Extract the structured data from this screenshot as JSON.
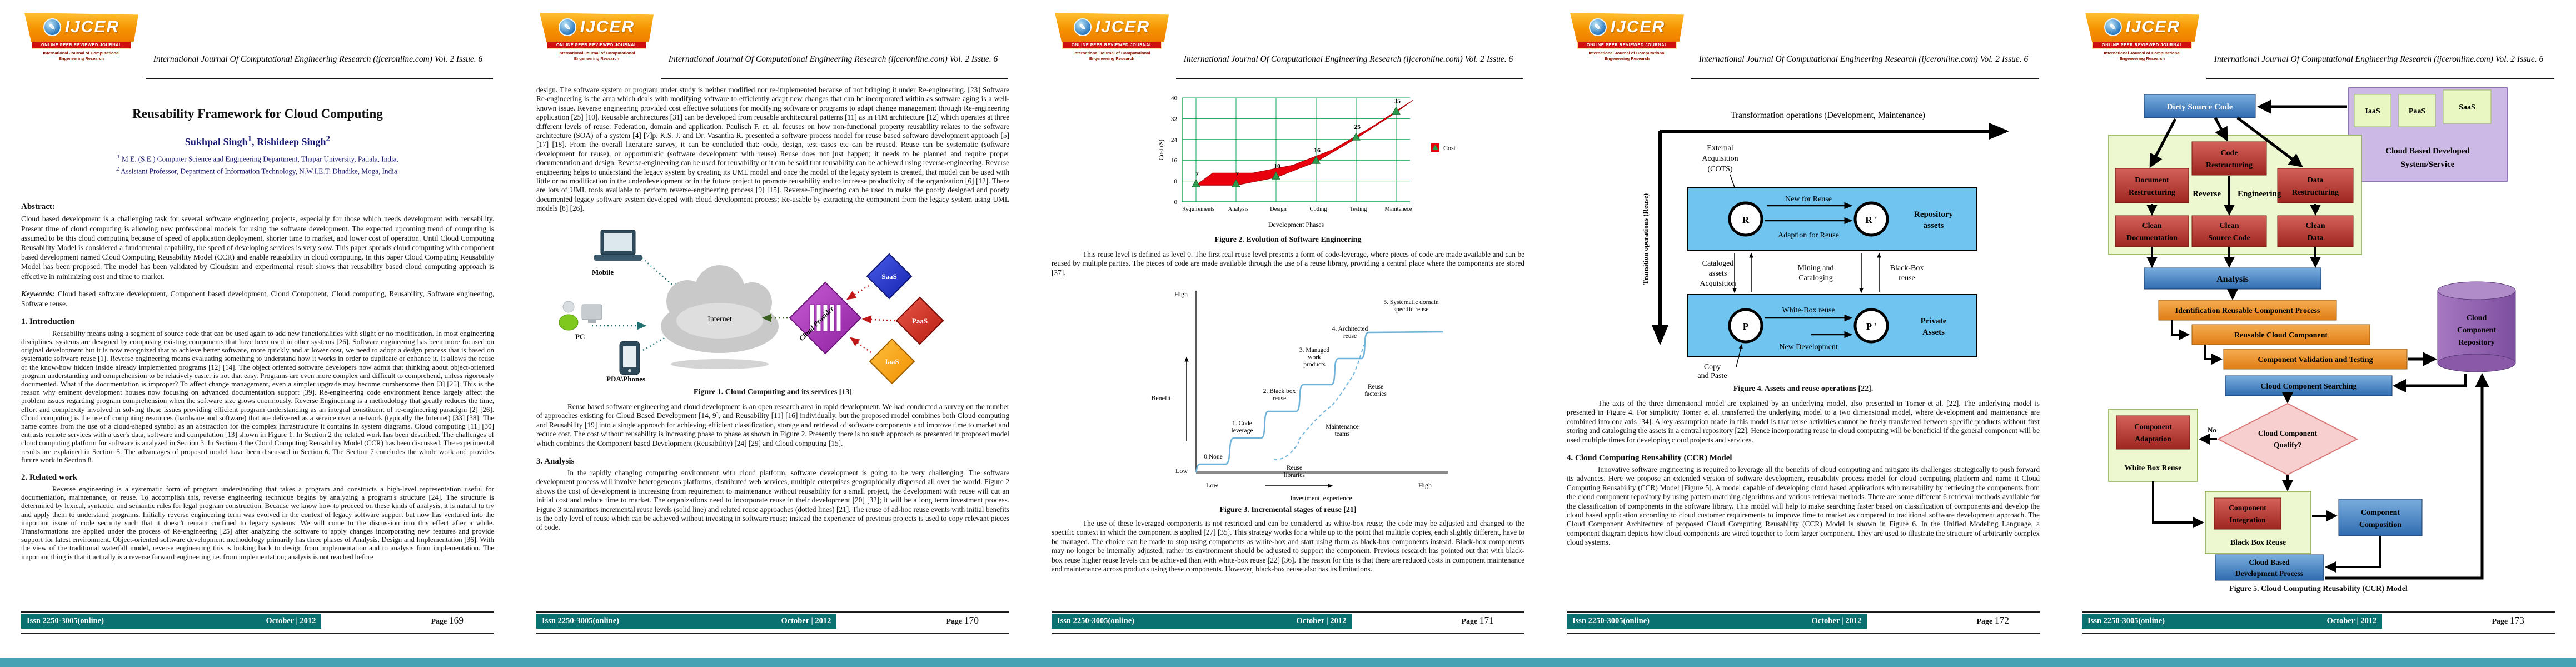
{
  "header": {
    "journal_title": "International Journal Of Computational Engineering Research (ijceronline.com) Vol. 2 Issue. 6",
    "logo_acronym": "IJCER",
    "logo_globe_glyph": "✎",
    "logo_banner": "ONLINE PEER REVIEWED JOURNAL",
    "logo_subtitle": "International Journal of Computational Engeneering Research"
  },
  "footer": {
    "issn": "Issn 2250-3005(online)",
    "date": "October | 2012",
    "page_label": "Page"
  },
  "page1": {
    "page_number": "169",
    "title": "Reusability Framework for Cloud Computing",
    "author1_name": "Sukhpal Singh",
    "author1_sup": "1",
    "author2_name": "Rishideep Singh",
    "author2_sup": "2",
    "affil1_sup": "1",
    "affil1": " M.E. (S.E.) Computer Science and Engineering Department, Thapar University, Patiala, India,",
    "affil2_sup": "2",
    "affil2": " Assistant Professor, Department of Information Technology, N.W.I.E.T. Dhudike, Moga, India.",
    "abstract_heading": "Abstract:",
    "abstract": "Cloud based development is a challenging task for several software engineering projects, especially for those which needs development with reusability. Present time of cloud computing is allowing new professional models for using the software development. The expected upcoming trend of computing is assumed to be this cloud computing because of speed of application deployment, shorter time to market, and lower cost of operation. Until Cloud Computing Reusability Model is considered a fundamental capability, the speed of developing services is very slow. This paper spreads cloud computing with component based development named Cloud Computing Reusability Model (CCR) and enable reusability in cloud computing. In this paper Cloud Computing Reusability Model has been proposed. The model has been validated by Cloudsim and experimental result shows that reusability based cloud computing approach is effective in minimizing cost and time to market.",
    "keywords_label": "Keywords:",
    "keywords": " Cloud based software development, Component based development, Cloud Component, Cloud computing, Reusability, Software engineering, Software reuse.",
    "s1_heading": "1. Introduction",
    "s1_text": "Reusability means using a segment of source code that can be used again to add new functionalities with slight or no modification. In most engineering disciplines, systems are designed by composing existing components that have been used in other systems [26]. Software engineering has been more focused on original development but it is now recognized that to achieve better software, more quickly and at lower cost, we need to adopt a design process that is based on systematic software reuse [1].  Reverse engineering means evaluating something to understand how it works in order to duplicate or enhance it. It allows the reuse of the know-how hidden inside already implemented programs [12] [14]. The object oriented software developers now admit that thinking about object-oriented program understanding and comprehension to be relatively easier is not that easy. Programs are even more complex and difficult to comprehend, unless rigorously documented. What if the documentation is improper? To affect change management, even a simpler upgrade may become cumbersome then [3] [25]. This is the reason why eminent development houses now focusing on advanced documentation support [39]. Re-engineering code environment hence largely affect the problem issues regarding program comprehension when the software size grows enormously. Reverse Engineering is a methodology that greatly reduces the time, effort and complexity involved in solving these issues providing efficient program understanding as an integral constituent of re-engineering paradigm [2] [26].  Cloud computing is the use of computing resources (hardware and software) that are delivered as a service over a network (typically the Internet) [33] [38]. The name comes from the use of a cloud-shaped symbol as an abstraction for the complex infrastructure it contains in system diagrams. Cloud computing [11] [30] entrusts remote services with a user's data, software and computation [13] shown in Figure 1. In Section 2 the related work has been described. The challenges of cloud computing platform for software is analyzed in Section 3. In Section 4 the Cloud Computing Reusability Model (CCR) has been discussed. The experimental results are explained in Section 5. The advantages of proposed model have been discussed in Section 6. The Section 7 concludes the whole work and provides future work in Section 8.",
    "s2_heading": "2. Related work",
    "s2_text": "Reverse engineering is a systematic form of program understanding that takes a program and constructs a high-level representation useful for documentation, maintenance, or reuse. To accomplish this, reverse engineering technique begins by analyzing a program's structure [24]. The structure is determined by lexical, syntactic, and semantic rules for legal program construction. Because we know how to proceed on these kinds of analysis, it is natural to try and apply them to understand programs. Initially reverse engineering term was evolved in the context of legacy software support but now has ventured into the important issue of code security such that it doesn't remain confined to legacy systems. We will come to the discussion into this effect after a while. Transformations are applied under the process of Re-engineering [25] after analyzing the software to apply changes incorporating new features and provide support for latest environment. Object-oriented software development methodology primarily has three phases of Analysis, Design and Implementation [36]. With the view of the traditional waterfall model, reverse engineering this is looking back to design from implementation and to analysis from implementation. The important thing is that it actually is a reverse forward engineering i.e. from implementation; analysis is not reached before"
  },
  "page2": {
    "page_number": "170",
    "para1": "design. The software system or program under study is neither modified nor re-implemented because of not bringing it under Re-engineering. [23] Software Re-engineering is the area which deals with modifying software to efficiently adapt new changes that can be incorporated within as software aging is a well-known issue. Reverse engineering provided cost effective solutions for modifying software or programs to adapt change management through Re-engineering application [25] [10]. Reusable architectures [31] can be developed from reusable architectural patterns [11] as in FIM architecture [12] which operates at three different levels of reuse: Federation, domain and application.  Paulisch F. et. al. focuses on how non-functional property reusability relates to the software architecture (SOA) of a system [4] [7]p. K.S. J. and Dr. Vasantha R. presented a software process model for reuse based software development approach [5] [17] [18]. From the overall literature survey, it can be concluded that: code, design, test cases etc can be reused. Reuse can be systematic (software development for reuse), or opportunistic (software development with reuse) Reuse does not just happen; it needs to be planned and require proper documentation and design. Reverse-engineering can be used for reusability or it can be said that reusability can be achieved using reverse-engineering. Reverse engineering helps to understand the legacy system by creating its UML model and once the model of the legacy system is created, that model can be used with little or no modification in the underdevelopment or in the future project to promote reusability and to increase productivity of the organization [6] [12]. There are lots of UML tools available to perform reverse-engineering process [9] [15]. Reverse-Engineering can be used to make the poorly designed and poorly documented legacy software system developed with cloud development process; Re-usable by extracting the component from the legacy system using UML models [8] [26].",
    "fig1": {
      "caption": "Figure 1.  Cloud Computing and its services [13]",
      "mobile": "Mobile",
      "pc": "PC",
      "pda": "PDA\\Phones",
      "internet": "Internet",
      "provider": "Cloud Provider",
      "saas": "SaaS",
      "paas": "PaaS",
      "iaas": "IaaS"
    },
    "para2": "Reuse based software engineering and cloud development is an open research area in rapid development. We had conducted a survey on the number of approaches existing for Cloud Based Development [14, 9], and Reusability [11] [16] individually, but the proposed model combines both Cloud computing and Reusability [19] into a single approach for achieving efficient classification, storage and retrieval of software components and improve time to market and reduce cost. The cost without reusability is increasing phase to phase as shown in Figure 2. Presently there is no such approach as presented in proposed model which combines the Component based Development (Reusability) [24] [29] and Cloud computing [15].",
    "s3_heading": "3. Analysis",
    "s3_text": "In the rapidly changing computing environment with cloud platform, software development is going to be very challenging. The software development process will involve heterogeneous platforms, distributed web services, multiple enterprises geographically dispersed all over the world. Figure 2 shows the cost of development is increasing from requirement to maintenance without reusability for a small project, the development with reuse will cut an initial cost and reduce time to market. The organizations need to incorporate reuse in their development [20] [32]; it will be a long term investment process. Figure 3 summarizes incremental reuse levels (solid line) and related reuse approaches (dotted lines) [21]. The reuse of ad-hoc reuse events with initial benefits is the only level of reuse which can be achieved without investing in software reuse; instead the experience of previous projects is used to copy relevant pieces of code."
  },
  "page3": {
    "page_number": "171",
    "para1": "This reuse level is defined as level 0. The first real reuse level presents a form of code-leverage, where pieces of code are made available and can be reused by multiple parties. The pieces of code are made available through the use of a reuse library, providing a central place where the components are stored [37].",
    "para2": "The use of these leveraged components is not restricted and can be considered as white-box reuse; the code may be adjusted and changed to the specific context in which the component is applied [27] [35]. This strategy works for a while up to the point that multiple copies, each slightly different, have to be managed. The choice can be made to stop using components as white-box and start using them as black-box components instead. Black-box components may no longer be internally adjusted; rather its environment should be adjusted to support the component. Previous research has pointed out that with black-box reuse higher reuse levels can be achieved than with white-box reuse [22] [36]. The reason for this is that there are reduced costs in component maintenance and maintenance across products using these components. However, black-box reuse also has its limitations."
  },
  "page4": {
    "page_number": "172",
    "fig4": {
      "caption": "Figure 4. Assets and reuse operations [22].",
      "top_axis": "Transformation operations (Development, Maintenance)",
      "left_axis": "Transition operations (Reuse)",
      "external": [
        "External",
        "Acquisition",
        "(COTS)"
      ],
      "new_for_reuse": "New for Reuse",
      "adaption": "Adaption for Reuse",
      "repository_assets": [
        "Repository",
        "assets"
      ],
      "cataloged": [
        "Cataloged",
        "assets",
        "Acquisition"
      ],
      "mining": [
        "Mining and",
        "Cataloging"
      ],
      "blackbox": [
        "Black-Box",
        "reuse"
      ],
      "whitebox": "White-Box reuse",
      "new_dev": "New Development",
      "private_assets": [
        "Private",
        "Assets"
      ],
      "copy_paste": [
        "Copy",
        "and Paste"
      ],
      "r1": "R",
      "r2": "R '",
      "p1": "P",
      "p2": "P '"
    },
    "para1": "The axis of the three dimensional model are explained by an underlying model, also presented in Tomer et al. [22]. The underlying model is presented in Figure 4. For simplicity Tomer et al. transferred the underlying model to a two dimensional model, where development and maintenance are combined into one axis [34]. A key assumption made in this model is that reuse activities cannot be freely transferred between specific products without first storing and cataloguing the assets in a central repository [22]. Hence incorporating reuse in cloud computing will be beneficial if the general component will be used multiple times for developing cloud projects and services.",
    "s4_heading": "4. Cloud Computing Reusability (CCR) Model",
    "s4_text": "Innovative software engineering is required to leverage all the benefits of cloud computing and mitigate its challenges strategically to push forward its advances. Here we propose an extended version of software development, reusability process model for cloud computing platform and name it Cloud Computing Reusability (CCR) Model [Figure 5]. A model capable of developing cloud based applications with reusability by retrieving the components from the cloud component repository by using pattern matching algorithms and various retrieval methods. There are some different 6 retrieval methods available for the classification of components in the software library. This model will help to make searching faster based on classification of components and develop the cloud based application according to cloud customer requirements to improve time to market as compared to traditional software development approach. The Cloud Component Architecture of proposed Cloud Computing Reusability (CCR) Model is shown in Figure 6. In the Unified Modeling Language, a component diagram depicts how cloud components are wired together to form larger component. They are used to illustrate the structure of arbitrarily complex cloud systems."
  },
  "page5": {
    "page_number": "173",
    "fig5": {
      "caption": "Figure 5. Cloud Computing Reusability (CCR) Model",
      "dirty": "Dirty Source Code",
      "iaas": "IaaS",
      "paas": "PaaS",
      "saas": "SaaS",
      "cbd": [
        "Cloud Based Developed",
        "System/Service"
      ],
      "code_restr": [
        "Code",
        "Restructuring"
      ],
      "doc_restr": [
        "Document",
        "Restructuring"
      ],
      "data_restr": [
        "Data",
        "Restructuring"
      ],
      "reverse": "Reverse",
      "engineering": "Engineering",
      "clean_doc": [
        "Clean",
        "Documentation"
      ],
      "clean_src": [
        "Clean",
        "Source Code"
      ],
      "clean_data": [
        "Clean",
        "Data"
      ],
      "analysis": "Analysis",
      "identification": "Identification Reusable Component Process",
      "reusable": "Reusable Cloud Component",
      "validation": "Component Validation and Testing",
      "repository": [
        "Cloud",
        "Component",
        "Repository"
      ],
      "searching": "Cloud Component Searching",
      "qualify": [
        "Cloud Component",
        "Qualify?"
      ],
      "no": "No",
      "yes": "Yes",
      "comp_adapt": [
        "Component",
        "Adaptation"
      ],
      "white_box": "White Box Reuse",
      "comp_integr": [
        "Component",
        "Integration"
      ],
      "black_box": "Black Box Reuse",
      "composition": [
        "Component",
        "Composition"
      ],
      "cbdp": [
        "Cloud Based",
        "Development Process"
      ]
    }
  },
  "chart_data": [
    {
      "id": "figure2",
      "type": "area",
      "title": "Figure 2. Evolution of Software Engineering",
      "categories": [
        "Requirements",
        "Analysis",
        "Design",
        "Coding",
        "Testing",
        "Maintenece"
      ],
      "series": [
        {
          "name": "Cost",
          "values": [
            7,
            7,
            10,
            16,
            25,
            35
          ]
        }
      ],
      "xlabel": "Development Phases",
      "ylabel": "Cost ($)",
      "ylim": [
        0,
        40
      ],
      "yticks": [
        0,
        8,
        16,
        24,
        32,
        40
      ],
      "legend": [
        "Cost"
      ],
      "legend_position": "right",
      "grid": true,
      "colors": {
        "ribbon": "#e8000d",
        "ribbon_edge": "#a50008",
        "grid": "#0aa64f",
        "marker": "#2e9b4f"
      }
    },
    {
      "id": "figure3",
      "type": "line",
      "title": "Figure 3. Incremental stages of reuse [21]",
      "xlabel": "Investment, experience",
      "ylabel": "Benefit",
      "x_axis_endpoints": [
        "Low",
        "High"
      ],
      "y_axis_endpoints": [
        "High",
        "Low"
      ],
      "solid_line_stages": [
        "0.None",
        "1. Code leverage",
        "2. Black box reuse",
        "3. Managed work products",
        "4. Architected reuse",
        "5. Systematic domain specific reuse"
      ],
      "dashed_line_labels": [
        "Reuse libraries",
        "Maintenance teams",
        "Reuse factories"
      ],
      "line_color": "#6fb3d9",
      "legend_position": "none",
      "grid": false
    }
  ]
}
